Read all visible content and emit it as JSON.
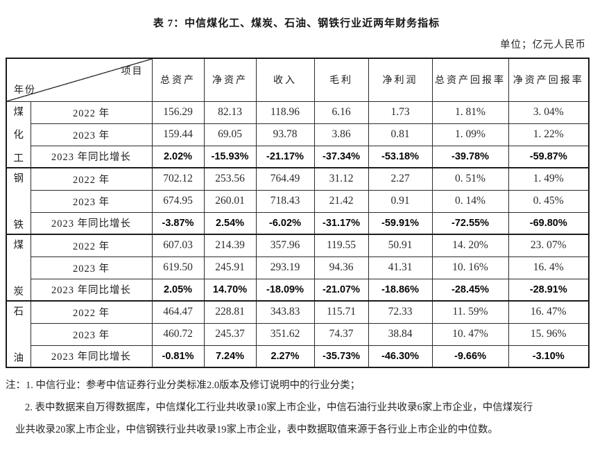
{
  "page": {
    "title": "表 7：中信煤化工、煤炭、石油、钢铁行业近两年财务指标",
    "unit": "单位；亿元人民币"
  },
  "table": {
    "corner": {
      "top_right": "项目",
      "bottom_left": "年份"
    },
    "columns": [
      "总资产",
      "净资产",
      "收入",
      "毛利",
      "净利润",
      "总资产回报率",
      "净资产回报率"
    ],
    "groups": [
      {
        "name": "煤化工",
        "chars": [
          "煤",
          "化",
          "工"
        ],
        "rows": [
          {
            "label": "2022 年",
            "bold": false,
            "values": [
              "156.29",
              "82.13",
              "118.96",
              "6.16",
              "1.73",
              "1. 81%",
              "3. 04%"
            ]
          },
          {
            "label": "2023 年",
            "bold": false,
            "values": [
              "159.44",
              "69.05",
              "93.78",
              "3.86",
              "0.81",
              "1. 09%",
              "1. 22%"
            ]
          },
          {
            "label": "2023 年同比增长",
            "bold": true,
            "values": [
              "2.02%",
              "-15.93%",
              "-21.17%",
              "-37.34%",
              "-53.18%",
              "-39.78%",
              "-59.87%"
            ]
          }
        ]
      },
      {
        "name": "钢铁",
        "chars": [
          "钢",
          "铁"
        ],
        "rows": [
          {
            "label": "2022 年",
            "bold": false,
            "values": [
              "702.12",
              "253.56",
              "764.49",
              "31.12",
              "2.27",
              "0. 51%",
              "1. 49%"
            ]
          },
          {
            "label": "2023 年",
            "bold": false,
            "values": [
              "674.95",
              "260.01",
              "718.43",
              "21.42",
              "0.91",
              "0. 14%",
              "0. 45%"
            ]
          },
          {
            "label": "2023 年同比增长",
            "bold": true,
            "values": [
              "-3.87%",
              "2.54%",
              "-6.02%",
              "-31.17%",
              "-59.91%",
              "-72.55%",
              "-69.80%"
            ]
          }
        ]
      },
      {
        "name": "煤炭",
        "chars": [
          "煤",
          "炭"
        ],
        "rows": [
          {
            "label": "2022 年",
            "bold": false,
            "values": [
              "607.03",
              "214.39",
              "357.96",
              "119.55",
              "50.91",
              "14. 20%",
              "23. 07%"
            ]
          },
          {
            "label": "2023 年",
            "bold": false,
            "values": [
              "619.50",
              "245.91",
              "293.19",
              "94.36",
              "41.31",
              "10. 16%",
              "16. 4%"
            ]
          },
          {
            "label": "2023 年同比增长",
            "bold": true,
            "values": [
              "2.05%",
              "14.70%",
              "-18.09%",
              "-21.07%",
              "-18.86%",
              "-28.45%",
              "-28.91%"
            ]
          }
        ]
      },
      {
        "name": "石油",
        "chars": [
          "石",
          "油"
        ],
        "rows": [
          {
            "label": "2022 年",
            "bold": false,
            "values": [
              "464.47",
              "228.81",
              "343.83",
              "115.71",
              "72.33",
              "11. 59%",
              "16. 47%"
            ]
          },
          {
            "label": "2023 年",
            "bold": false,
            "values": [
              "460.72",
              "245.37",
              "351.62",
              "74.37",
              "38.84",
              "10. 47%",
              "15. 96%"
            ]
          },
          {
            "label": "2023 年同比增长",
            "bold": true,
            "values": [
              "-0.81%",
              "7.24%",
              "2.27%",
              "-35.73%",
              "-46.30%",
              "-9.66%",
              "-3.10%"
            ]
          }
        ]
      }
    ]
  },
  "notes": {
    "lines": [
      "注：1. 中信行业：参考中信证券行业分类标准2.0版本及修订说明中的行业分类；",
      "2. 表中数据来自万得数据库，中信煤化工行业共收录10家上市企业，中信石油行业共收录6家上市企业，中信煤炭行",
      "业共收录20家上市企业，中信钢铁行业共收录19家上市企业，表中数据取值来源于各行业上市企业的中位数。"
    ]
  }
}
